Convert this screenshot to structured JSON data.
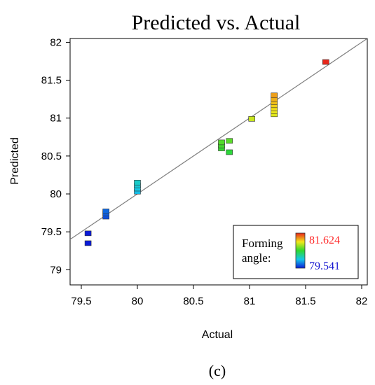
{
  "chart_data": {
    "type": "scatter",
    "title": "Predicted vs. Actual",
    "xlabel": "Actual",
    "ylabel": "Predicted",
    "xlim": [
      79.4,
      82.05
    ],
    "ylim": [
      78.8,
      82.05
    ],
    "xticks": [
      "79.5",
      "80",
      "80.5",
      "81",
      "81.5",
      "82"
    ],
    "yticks": [
      "79",
      "79.5",
      "80",
      "80.5",
      "81",
      "81.5",
      "82"
    ],
    "reference_line": [
      [
        79.4,
        79.4
      ],
      [
        82.05,
        82.05
      ]
    ],
    "grid": false,
    "points": [
      {
        "x": 79.56,
        "y": 79.35
      },
      {
        "x": 79.56,
        "y": 79.48
      },
      {
        "x": 79.72,
        "y": 79.7
      },
      {
        "x": 79.72,
        "y": 79.74
      },
      {
        "x": 79.72,
        "y": 79.77
      },
      {
        "x": 80.0,
        "y": 80.03
      },
      {
        "x": 80.0,
        "y": 80.07
      },
      {
        "x": 80.0,
        "y": 80.11
      },
      {
        "x": 80.0,
        "y": 80.15
      },
      {
        "x": 80.75,
        "y": 80.6
      },
      {
        "x": 80.75,
        "y": 80.64
      },
      {
        "x": 80.75,
        "y": 80.68
      },
      {
        "x": 80.82,
        "y": 80.55
      },
      {
        "x": 80.82,
        "y": 80.7
      },
      {
        "x": 81.02,
        "y": 80.99
      },
      {
        "x": 81.22,
        "y": 81.05
      },
      {
        "x": 81.22,
        "y": 81.09
      },
      {
        "x": 81.22,
        "y": 81.13
      },
      {
        "x": 81.22,
        "y": 81.17
      },
      {
        "x": 81.22,
        "y": 81.21
      },
      {
        "x": 81.22,
        "y": 81.25
      },
      {
        "x": 81.22,
        "y": 81.3
      },
      {
        "x": 81.68,
        "y": 81.74
      }
    ],
    "legend": {
      "title_line1": "Forming",
      "title_line2": "angle:",
      "max_label": "81.624",
      "min_label": "79.541",
      "max_value": 81.624,
      "min_value": 79.541,
      "placement": "bottom-right",
      "max_color": "#ff2a2a",
      "min_color": "#1515d0"
    }
  },
  "caption": "(c)"
}
